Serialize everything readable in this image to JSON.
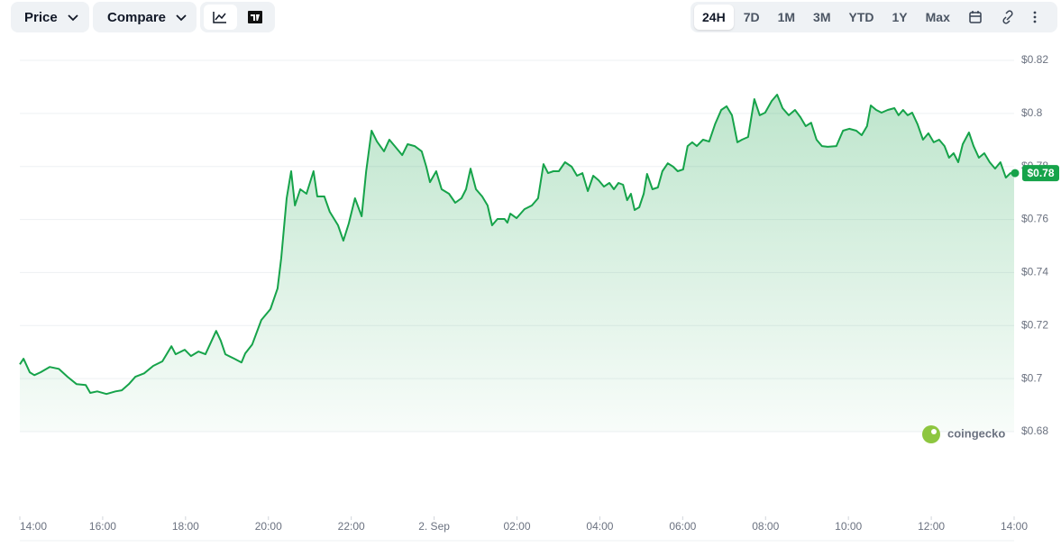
{
  "toolbar": {
    "price": "Price",
    "compare": "Compare",
    "ranges": [
      "24H",
      "7D",
      "1M",
      "3M",
      "YTD",
      "1Y",
      "Max"
    ],
    "active_range": "24H"
  },
  "watermark": "coingecko",
  "chart_data": {
    "type": "area",
    "x": [
      0,
      0.09,
      0.24,
      0.35,
      0.5,
      0.72,
      0.94,
      1.15,
      1.37,
      1.59,
      1.7,
      1.87,
      2.09,
      2.31,
      2.46,
      2.63,
      2.79,
      3,
      3.22,
      3.44,
      3.66,
      3.76,
      3.98,
      4.13,
      4.31,
      4.48,
      4.63,
      4.74,
      4.85,
      4.96,
      5.18,
      5.35,
      5.44,
      5.61,
      5.83,
      6.05,
      6.22,
      6.31,
      6.44,
      6.55,
      6.64,
      6.77,
      6.92,
      7.09,
      7.18,
      7.35,
      7.48,
      7.68,
      7.81,
      7.94,
      8.09,
      8.25,
      8.36,
      8.49,
      8.62,
      8.79,
      8.92,
      9.05,
      9.23,
      9.36,
      9.53,
      9.7,
      9.81,
      9.9,
      10.05,
      10.18,
      10.36,
      10.51,
      10.66,
      10.77,
      10.88,
      11.01,
      11.16,
      11.29,
      11.4,
      11.53,
      11.7,
      11.77,
      11.84,
      11.99,
      12.18,
      12.36,
      12.51,
      12.64,
      12.75,
      12.88,
      13.01,
      13.16,
      13.32,
      13.45,
      13.58,
      13.71,
      13.84,
      13.97,
      14.1,
      14.23,
      14.34,
      14.45,
      14.56,
      14.66,
      14.75,
      14.84,
      14.95,
      15.06,
      15.14,
      15.27,
      15.4,
      15.51,
      15.64,
      15.77,
      15.88,
      16.01,
      16.12,
      16.23,
      16.34,
      16.49,
      16.64,
      16.78,
      16.93,
      17.06,
      17.19,
      17.32,
      17.43,
      17.58,
      17.73,
      17.86,
      17.99,
      18.15,
      18.28,
      18.41,
      18.56,
      18.71,
      18.84,
      18.97,
      19.1,
      19.23,
      19.36,
      19.5,
      19.71,
      19.87,
      20.02,
      20.19,
      20.32,
      20.45,
      20.54,
      20.67,
      20.8,
      20.95,
      21.11,
      21.21,
      21.32,
      21.43,
      21.54,
      21.67,
      21.8,
      21.93,
      22.06,
      22.19,
      22.32,
      22.43,
      22.54,
      22.65,
      22.76,
      22.91,
      23.02,
      23.15,
      23.28,
      23.41,
      23.54,
      23.67,
      23.8,
      23.91,
      24
    ],
    "series": [
      {
        "name": "Price",
        "color": "#16a34a",
        "values": [
          0.7054,
          0.7075,
          0.7024,
          0.7013,
          0.7024,
          0.7044,
          0.7037,
          0.7007,
          0.6979,
          0.6976,
          0.6946,
          0.6952,
          0.6942,
          0.6952,
          0.6956,
          0.6979,
          0.7007,
          0.702,
          0.7048,
          0.7065,
          0.7122,
          0.7092,
          0.7109,
          0.7085,
          0.7102,
          0.7092,
          0.7143,
          0.718,
          0.7143,
          0.7092,
          0.7075,
          0.7061,
          0.7095,
          0.7129,
          0.7221,
          0.7262,
          0.734,
          0.7455,
          0.768,
          0.7782,
          0.7653,
          0.7714,
          0.7697,
          0.7782,
          0.7687,
          0.7687,
          0.7629,
          0.7578,
          0.752,
          0.7585,
          0.768,
          0.7612,
          0.7782,
          0.7935,
          0.7894,
          0.7857,
          0.7901,
          0.7877,
          0.7843,
          0.7884,
          0.7877,
          0.7857,
          0.7799,
          0.7741,
          0.7782,
          0.7714,
          0.7697,
          0.7663,
          0.768,
          0.7714,
          0.7792,
          0.7714,
          0.7687,
          0.7653,
          0.7578,
          0.7602,
          0.7602,
          0.7588,
          0.7622,
          0.7605,
          0.7639,
          0.7653,
          0.768,
          0.7809,
          0.7775,
          0.7782,
          0.7782,
          0.7816,
          0.7799,
          0.7765,
          0.7775,
          0.7707,
          0.7765,
          0.7748,
          0.7724,
          0.7738,
          0.7714,
          0.7738,
          0.7731,
          0.7673,
          0.7697,
          0.7636,
          0.7646,
          0.7697,
          0.7772,
          0.7714,
          0.7721,
          0.7782,
          0.7812,
          0.7799,
          0.7782,
          0.7789,
          0.7877,
          0.7891,
          0.7877,
          0.7901,
          0.7894,
          0.7959,
          0.8013,
          0.8027,
          0.7993,
          0.7891,
          0.7901,
          0.7911,
          0.8054,
          0.7993,
          0.8003,
          0.8047,
          0.8071,
          0.802,
          0.7993,
          0.8013,
          0.7986,
          0.7952,
          0.7965,
          0.7901,
          0.7877,
          0.7874,
          0.7877,
          0.7935,
          0.7942,
          0.7935,
          0.7918,
          0.7952,
          0.803,
          0.8013,
          0.8003,
          0.8013,
          0.802,
          0.7993,
          0.8013,
          0.7993,
          0.8003,
          0.7959,
          0.7901,
          0.7925,
          0.7891,
          0.7901,
          0.7877,
          0.7833,
          0.785,
          0.7816,
          0.7884,
          0.7928,
          0.7877,
          0.7833,
          0.785,
          0.7816,
          0.7792,
          0.7816,
          0.7758,
          0.7775,
          0.7775
        ]
      }
    ],
    "last_price": {
      "value": 0.78,
      "label": "$0.78"
    },
    "xlim": [
      0,
      24
    ],
    "xticks": [
      {
        "value": 0,
        "label": "14:00"
      },
      {
        "value": 2,
        "label": "16:00"
      },
      {
        "value": 4,
        "label": "18:00"
      },
      {
        "value": 6,
        "label": "20:00"
      },
      {
        "value": 8,
        "label": "22:00"
      },
      {
        "value": 10,
        "label": "2. Sep"
      },
      {
        "value": 12,
        "label": "02:00"
      },
      {
        "value": 14,
        "label": "04:00"
      },
      {
        "value": 16,
        "label": "06:00"
      },
      {
        "value": 18,
        "label": "08:00"
      },
      {
        "value": 20,
        "label": "10:00"
      },
      {
        "value": 22,
        "label": "12:00"
      },
      {
        "value": 24,
        "label": "14:00"
      }
    ],
    "ylim": [
      0.68,
      0.82
    ],
    "yticks": [
      {
        "value": 0.68,
        "label": "$0.68"
      },
      {
        "value": 0.7,
        "label": "$0.7"
      },
      {
        "value": 0.72,
        "label": "$0.72"
      },
      {
        "value": 0.74,
        "label": "$0.74"
      },
      {
        "value": 0.76,
        "label": "$0.76"
      },
      {
        "value": 0.78,
        "label": "$0.78"
      },
      {
        "value": 0.8,
        "label": "$0.8"
      },
      {
        "value": 0.82,
        "label": "$0.82"
      }
    ],
    "grid": true
  }
}
